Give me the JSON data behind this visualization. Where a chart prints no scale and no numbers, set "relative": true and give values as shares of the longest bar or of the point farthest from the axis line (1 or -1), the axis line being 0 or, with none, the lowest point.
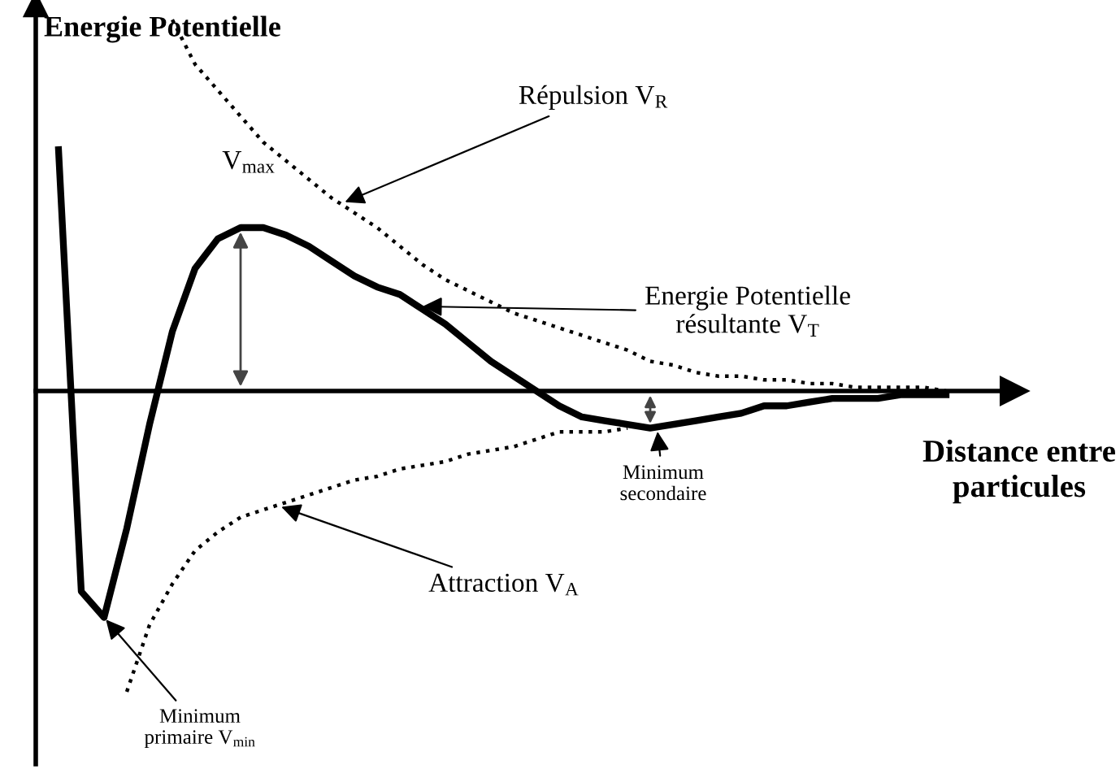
{
  "chart_data": {
    "type": "line",
    "relative": true,
    "ylabel": "Energie Potentielle",
    "xlabel": "Distance entre\nparticules",
    "categories": [
      null,
      null,
      null,
      null,
      null,
      null,
      null,
      null,
      null,
      null,
      null,
      null,
      null,
      null,
      null,
      null,
      null,
      null,
      null,
      null,
      null,
      null,
      null,
      null,
      null,
      null,
      null,
      null,
      null,
      null,
      null,
      null,
      null,
      null,
      null,
      null,
      null,
      null,
      null,
      null,
      null,
      null
    ],
    "series": [
      {
        "color": "#000000",
        "line_style": "dotted",
        "values": [
          null,
          null,
          null,
          null,
          null,
          1,
          0.88,
          0.81,
          0.74,
          0.67,
          0.62,
          0.57,
          0.52,
          0.48,
          0.44,
          0.39,
          0.34,
          0.3,
          0.27,
          0.24,
          0.21,
          0.19,
          0.17,
          0.15,
          0.13,
          0.11,
          0.08,
          0.07,
          0.05,
          0.04,
          0.04,
          0.03,
          0.03,
          0.02,
          0.02,
          0.01,
          0.01,
          0.01,
          0.01,
          0.0,
          null,
          null
        ]
      },
      {
        "color": "#000000",
        "line_style": "solid",
        "values": [
          0.65,
          -0.54,
          -0.61,
          -0.37,
          -0.09,
          0.16,
          0.33,
          0.41,
          0.44,
          0.44,
          0.42,
          0.39,
          0.35,
          0.31,
          0.28,
          0.26,
          0.22,
          0.18,
          0.13,
          0.08,
          0.04,
          0.0,
          -0.04,
          -0.07,
          -0.08,
          -0.09,
          -0.1,
          -0.09,
          -0.08,
          -0.07,
          -0.06,
          -0.04,
          -0.04,
          -0.03,
          -0.02,
          -0.02,
          -0.02,
          -0.01,
          -0.01,
          -0.01,
          null,
          null
        ]
      },
      {
        "color": "#000000",
        "line_style": "dotted",
        "values": [
          null,
          null,
          null,
          -0.81,
          -0.63,
          -0.52,
          -0.43,
          -0.38,
          -0.34,
          -0.32,
          -0.3,
          -0.28,
          -0.26,
          -0.24,
          -0.23,
          -0.21,
          -0.2,
          -0.19,
          -0.17,
          -0.16,
          -0.15,
          -0.13,
          -0.11,
          -0.11,
          -0.11,
          -0.1,
          null,
          null,
          null,
          null,
          null,
          null,
          null,
          null,
          null,
          null,
          null,
          null,
          null,
          null,
          null,
          null
        ]
      }
    ],
    "annotations": [
      "Répulsion V$_{R}$",
      "V$_{max}$",
      "Energie Potentielle\nrésultante V$_{T}$",
      "Minimum\nsecondaire",
      "Attraction V$_{A}$",
      "Minimum\nprimaire V$_{min}$"
    ],
    "legend": false
  }
}
